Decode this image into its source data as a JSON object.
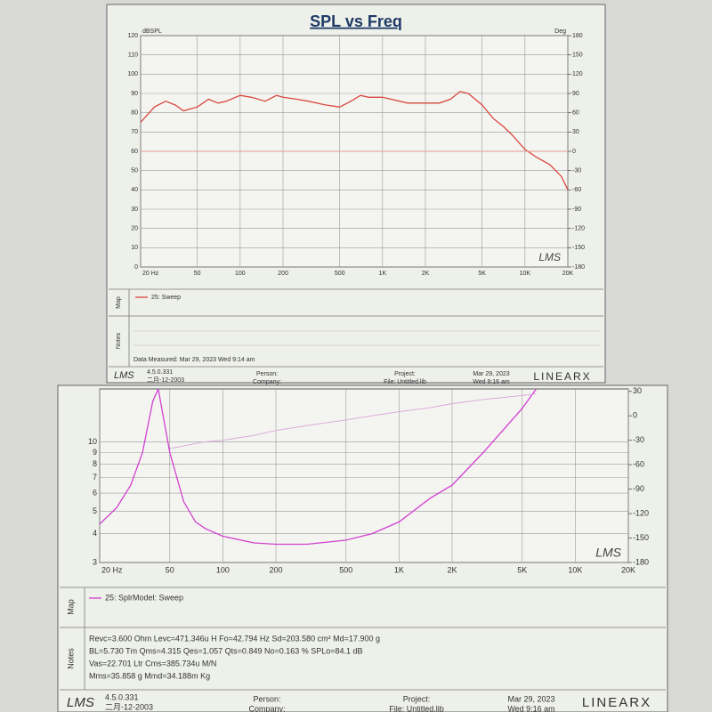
{
  "chart_data": [
    {
      "type": "line",
      "title": "SPL vs Freq",
      "y_label": "dBSPL",
      "y2_label": "Deg",
      "watermark": "LMS",
      "xlog": true,
      "grid": true,
      "x": [
        20,
        25,
        30,
        35,
        40,
        50,
        60,
        70,
        80,
        100,
        120,
        150,
        180,
        200,
        250,
        300,
        400,
        500,
        600,
        700,
        800,
        1000,
        1500,
        2000,
        2500,
        3000,
        3500,
        4000,
        5000,
        6000,
        7000,
        8000,
        10000,
        12000,
        15000,
        18000,
        20000
      ],
      "xlim": [
        20,
        20000
      ],
      "xticks": [
        {
          "value": 20,
          "label": "20 Hz"
        },
        50,
        100,
        200,
        500,
        {
          "value": 1000,
          "label": "1K"
        },
        {
          "value": 2000,
          "label": "2K"
        },
        {
          "value": 5000,
          "label": "5K"
        },
        {
          "value": 10000,
          "label": "10K"
        },
        {
          "value": 20000,
          "label": "20K"
        }
      ],
      "ylim": [
        0,
        120
      ],
      "yticks": [
        0,
        10,
        20,
        30,
        40,
        50,
        60,
        70,
        80,
        90,
        100,
        110,
        120
      ],
      "y2lim": [
        -180,
        180
      ],
      "y2ticks": [
        -180,
        -150,
        -120,
        -90,
        -60,
        -30,
        0,
        30,
        60,
        90,
        120,
        150,
        180
      ],
      "series": [
        {
          "name": "25: Sweep",
          "color": "#d9473f",
          "values": [
            75,
            83,
            86,
            84,
            81,
            83,
            87,
            85,
            86,
            89,
            88,
            86,
            89,
            88,
            87,
            86,
            84,
            83,
            86,
            89,
            88,
            88,
            85,
            85,
            85,
            87,
            91,
            90,
            84,
            77,
            73,
            69,
            61,
            57,
            53,
            47,
            40
          ]
        },
        {
          "color": "#e89a90",
          "axis": "y2",
          "values": [
            0,
            0,
            0,
            0,
            0,
            0,
            0,
            0,
            0,
            0,
            0,
            0,
            0,
            0,
            0,
            0,
            0,
            0,
            0,
            0,
            0,
            0,
            0,
            0,
            0,
            0,
            0,
            0,
            0,
            0,
            0,
            0,
            0,
            0,
            0,
            0,
            0
          ]
        }
      ]
    },
    {
      "type": "line",
      "watermark": "LMS",
      "xlog": true,
      "ylog": true,
      "grid": true,
      "x": [
        20,
        25,
        30,
        35,
        40,
        43,
        50,
        60,
        70,
        80,
        100,
        150,
        200,
        300,
        500,
        700,
        1000,
        1500,
        2000,
        3000,
        5000,
        6000
      ],
      "xlim": [
        20,
        20000
      ],
      "xticks": [
        {
          "value": 20,
          "label": "20 Hz"
        },
        50,
        100,
        200,
        500,
        {
          "value": 1000,
          "label": "1K"
        },
        {
          "value": 2000,
          "label": "2K"
        },
        {
          "value": 5000,
          "label": "5K"
        },
        {
          "value": 10000,
          "label": "10K"
        },
        {
          "value": 20000,
          "label": "20K"
        }
      ],
      "ylim": [
        3,
        17
      ],
      "yticks": [
        3,
        4,
        5,
        6,
        7,
        8,
        9,
        10
      ],
      "y2lim": [
        -180,
        33
      ],
      "y2ticks": [
        -180,
        -150,
        -120,
        -90,
        -60,
        -30,
        0,
        30
      ],
      "series": [
        {
          "name": "25: SplrModel: Sweep",
          "color": "#d23fd0",
          "values": [
            4.4,
            5.2,
            6.5,
            9,
            15,
            17,
            9,
            5.5,
            4.5,
            4.2,
            3.9,
            3.65,
            3.6,
            3.6,
            3.75,
            4.0,
            4.5,
            5.7,
            6.5,
            9,
            14,
            17
          ]
        },
        {
          "color": "#d9a3d8",
          "axis": "y2",
          "values": [
            null,
            null,
            null,
            null,
            null,
            null,
            -40,
            -37,
            -34,
            -32,
            -30,
            -24,
            -18,
            -12,
            -5,
            0,
            5,
            10,
            15,
            20,
            25,
            27
          ]
        }
      ]
    }
  ],
  "panels": [
    {
      "map_label": "Map",
      "notes_label": "Notes",
      "notes": [
        "Data Measured: Mar 29, 2023  Wed  9:14 am"
      ],
      "footer": {
        "logo": "LMS",
        "version": "4.5.0.331",
        "date": "二月-12-2003",
        "person": "Person:",
        "company": "Company:",
        "project": "Project:",
        "file": "File: Untitled.lib",
        "print_date": "Mar 29, 2023",
        "print_time": "Wed  9:16 am",
        "brand": "LINEARX"
      }
    },
    {
      "map_label": "Map",
      "notes_label": "Notes",
      "notes": [
        "Revc=3.600 Ohm  Levc=471.346u H  Fo=42.794 Hz  Sd=203.580 cm²  Md=17.900 g",
        "BL=5.730 Tm  Qms=4.315  Qes=1.057  Qts=0.849  No=0.163 %  SPLo=84.1 dB",
        "Vas=22.701 Ltr  Cms=385.734u M/N",
        "Mms=35.858 g  Mmd=34.188m Kg"
      ],
      "footer": {
        "logo": "LMS",
        "version": "4.5.0.331",
        "date": "二月-12-2003",
        "person": "Person:",
        "company": "Company:",
        "project": "Project:",
        "file": "File: Untitled.lib",
        "print_date": "Mar 29, 2023",
        "print_time": "Wed  9:16 am",
        "brand": "LINEARX"
      }
    }
  ]
}
